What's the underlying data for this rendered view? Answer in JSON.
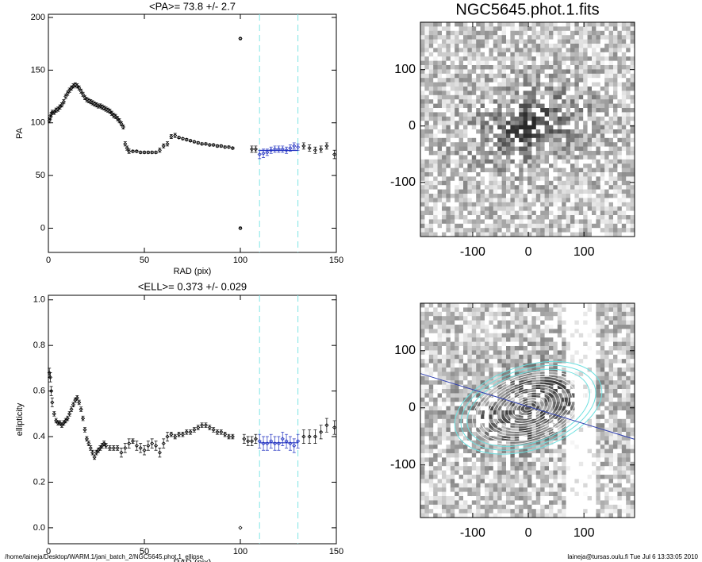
{
  "chart_data": [
    {
      "type": "scatter",
      "title": "<PA>=  73.8 +/-   2.7",
      "x_label": "RAD (pix)",
      "y_label": "PA",
      "xlim": [
        0,
        150
      ],
      "xticks": [
        0,
        50,
        100,
        150
      ],
      "ylim": [
        -23,
        203
      ],
      "yticks": [
        0,
        50,
        100,
        150,
        200
      ],
      "vlines": [
        110,
        130
      ],
      "fit": {
        "x": [
          110,
          130
        ],
        "value": 73.8
      },
      "x": [
        0.5,
        1,
        1.5,
        2,
        3,
        4,
        5,
        6,
        7,
        8,
        9,
        10,
        11,
        12,
        13,
        14,
        15,
        16,
        17,
        18,
        19,
        20,
        21,
        22,
        23,
        24,
        25,
        26,
        27,
        28,
        29,
        30,
        31,
        32,
        33,
        34,
        35,
        36,
        37,
        38,
        39,
        40,
        41,
        42,
        44,
        46,
        48,
        50,
        52,
        54,
        56,
        58,
        60,
        62,
        64,
        66,
        68,
        70,
        72,
        74,
        76,
        78,
        80,
        82,
        84,
        86,
        88,
        90,
        92,
        94,
        96,
        100,
        100,
        106,
        108,
        110,
        112,
        114,
        116,
        118,
        120,
        122,
        124,
        126,
        128,
        130,
        133,
        136,
        139,
        142,
        145,
        149
      ],
      "values": [
        102,
        105,
        108,
        110,
        110,
        112,
        113,
        115,
        117,
        120,
        125,
        128,
        131,
        133,
        135,
        136,
        135,
        133,
        130,
        127,
        124,
        122,
        121,
        120,
        119,
        118,
        117,
        116,
        116,
        115,
        114,
        113,
        112,
        111,
        109,
        107,
        106,
        104,
        102,
        99,
        96,
        80,
        76,
        73,
        73,
        73,
        72,
        72,
        72,
        72,
        72,
        74,
        78,
        80,
        87,
        88,
        86,
        85,
        84,
        83,
        82,
        81,
        80,
        80,
        79,
        79,
        78,
        78,
        77,
        77,
        76,
        180,
        0,
        75,
        75,
        70,
        71,
        72,
        74,
        75,
        75,
        75,
        74,
        76,
        78,
        77,
        78,
        76,
        74,
        75,
        78,
        70
      ],
      "errors": [
        2,
        2,
        2,
        2,
        2,
        2,
        2,
        2,
        2,
        2,
        2,
        2,
        2,
        2,
        2,
        2,
        2,
        2,
        2,
        2,
        2,
        2,
        2,
        2,
        2,
        2,
        2,
        2,
        2,
        2,
        2,
        2,
        2,
        2,
        2,
        2,
        2,
        2,
        2,
        2,
        2,
        2,
        2,
        2,
        1,
        1,
        1,
        1,
        1,
        1,
        1,
        2,
        2,
        2,
        2,
        2,
        1,
        1,
        1,
        1,
        1,
        1,
        1,
        1,
        1,
        1,
        1,
        1,
        1,
        1,
        1,
        1,
        1,
        3,
        3,
        4,
        4,
        3,
        3,
        3,
        3,
        3,
        3,
        3,
        3,
        3,
        3,
        3,
        3,
        3,
        3,
        4
      ]
    },
    {
      "type": "scatter",
      "title": "<ELL>= 0.373 +/-  0.029",
      "x_label": "RAD (pix)",
      "y_label": "ellipticity",
      "xlim": [
        0,
        150
      ],
      "xticks": [
        0,
        50,
        100,
        150
      ],
      "ylim": [
        -0.07,
        1.02
      ],
      "yticks": [
        {
          "value": 0,
          "label": "0.0"
        },
        0.2,
        0.4,
        0.6,
        0.8,
        {
          "value": 1,
          "label": "1.0"
        }
      ],
      "vlines": [
        110,
        130
      ],
      "fit": {
        "x": [
          110,
          130
        ],
        "value": 0.373
      },
      "x": [
        0.5,
        1,
        1.5,
        2,
        3,
        4,
        5,
        6,
        7,
        8,
        9,
        10,
        11,
        12,
        13,
        14,
        15,
        16,
        17,
        18,
        19,
        20,
        21,
        22,
        23,
        24,
        25,
        26,
        27,
        28,
        29,
        30,
        32,
        34,
        36,
        38,
        40,
        42,
        44,
        46,
        48,
        50,
        52,
        54,
        56,
        58,
        60,
        62,
        64,
        66,
        68,
        70,
        72,
        74,
        76,
        78,
        80,
        82,
        84,
        86,
        88,
        90,
        92,
        94,
        96,
        100,
        102,
        104,
        106,
        108,
        110,
        112,
        114,
        116,
        118,
        120,
        122,
        124,
        126,
        128,
        130,
        133,
        136,
        139,
        142,
        145,
        149
      ],
      "values": [
        0.68,
        0.66,
        0.6,
        0.55,
        0.5,
        0.47,
        0.46,
        0.46,
        0.45,
        0.46,
        0.47,
        0.48,
        0.5,
        0.52,
        0.54,
        0.56,
        0.57,
        0.55,
        0.52,
        0.48,
        0.43,
        0.39,
        0.37,
        0.35,
        0.33,
        0.31,
        0.33,
        0.34,
        0.35,
        0.36,
        0.37,
        0.36,
        0.35,
        0.35,
        0.35,
        0.33,
        0.35,
        0.37,
        0.38,
        0.36,
        0.35,
        0.34,
        0.36,
        0.37,
        0.36,
        0.33,
        0.37,
        0.4,
        0.41,
        0.4,
        0.41,
        0.41,
        0.42,
        0.42,
        0.43,
        0.44,
        0.45,
        0.45,
        0.44,
        0.43,
        0.42,
        0.42,
        0.41,
        0.4,
        0.4,
        0,
        0.39,
        0.38,
        0.38,
        0.39,
        0.38,
        0.37,
        0.37,
        0.38,
        0.37,
        0.37,
        0.39,
        0.38,
        0.37,
        0.36,
        0.38,
        0.4,
        0.4,
        0.4,
        0.42,
        0.45,
        0.44
      ],
      "errors": [
        0.02,
        0.02,
        0.02,
        0.02,
        0.01,
        0.01,
        0.01,
        0.01,
        0.01,
        0.01,
        0.01,
        0.01,
        0.01,
        0.01,
        0.01,
        0.01,
        0.01,
        0.01,
        0.01,
        0.01,
        0.01,
        0.01,
        0.01,
        0.01,
        0.01,
        0.01,
        0.01,
        0.01,
        0.01,
        0.01,
        0.01,
        0.01,
        0.01,
        0.01,
        0.01,
        0.02,
        0.02,
        0.02,
        0.01,
        0.02,
        0.02,
        0.02,
        0.02,
        0.02,
        0.02,
        0.02,
        0.02,
        0.02,
        0.01,
        0.01,
        0.01,
        0.01,
        0.01,
        0.01,
        0.01,
        0.01,
        0.01,
        0.01,
        0.01,
        0.01,
        0.01,
        0.01,
        0.01,
        0.01,
        0.01,
        0,
        0.02,
        0.02,
        0.02,
        0.02,
        0.03,
        0.03,
        0.03,
        0.03,
        0.03,
        0.03,
        0.03,
        0.03,
        0.03,
        0.03,
        0.03,
        0.03,
        0.03,
        0.03,
        0.03,
        0.03,
        0.03
      ]
    },
    {
      "type": "image",
      "title": "NGC5645.phot.1.fits",
      "xlim": [
        -194,
        191
      ],
      "xticks": [
        -100,
        0,
        100
      ],
      "ylim": [
        -196,
        184
      ],
      "yticks": [
        -100,
        0,
        100
      ]
    },
    {
      "type": "image",
      "residual": true,
      "xlim": [
        -194,
        191
      ],
      "xticks": [
        -100,
        0,
        100
      ],
      "ylim": [
        -192,
        183
      ],
      "yticks": [
        -100,
        0,
        100
      ]
    }
  ],
  "footer": {
    "left": "/home/laineja/Desktop/WARM.1/jani_batch_2/NGC5645.phot.1_ellipse",
    "right": "laineja@tursas.oulu.fi  Tue Jul  6 13:33:05 2010"
  }
}
